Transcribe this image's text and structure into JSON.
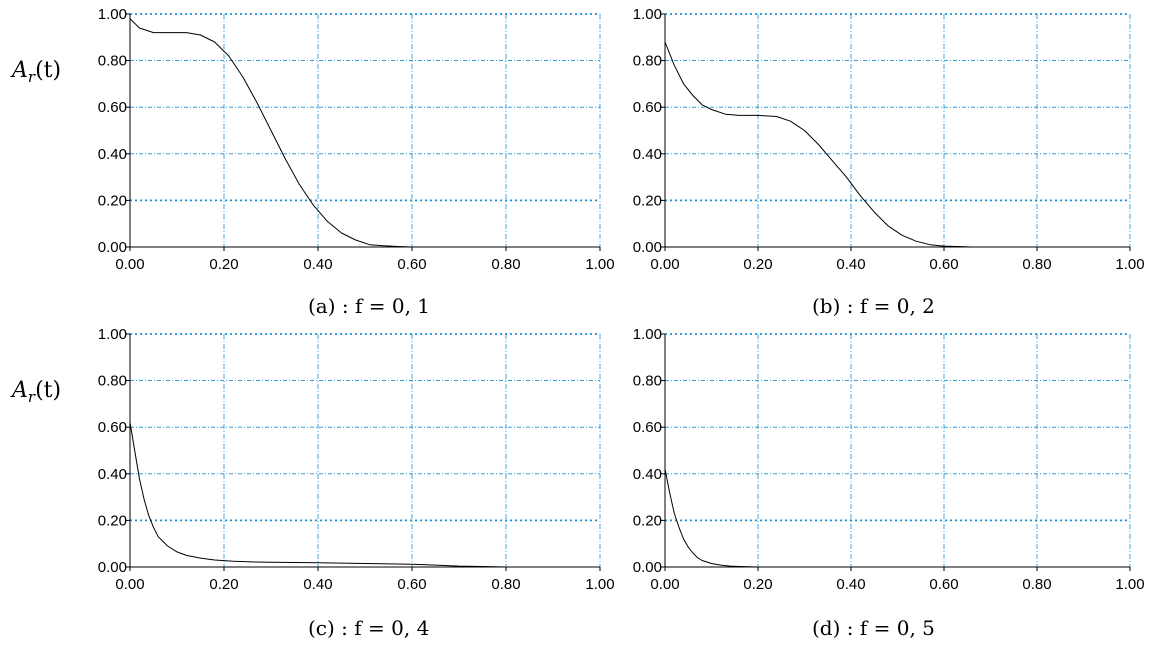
{
  "ylabel_text": {
    "main": "A",
    "sub": "r",
    "rest": "(t)"
  },
  "chart_data": [
    {
      "type": "line",
      "caption": "(a) : f = 0, 1",
      "x_ticks": [
        "0.00",
        "0.20",
        "0.40",
        "0.60",
        "0.80",
        "1.00"
      ],
      "y_ticks": [
        "0.00",
        "0.20",
        "0.40",
        "0.60",
        "0.80",
        "1.00"
      ],
      "xlim": [
        0,
        1
      ],
      "ylim": [
        0,
        1
      ],
      "grid": true,
      "x": [
        0.0,
        0.02,
        0.05,
        0.08,
        0.12,
        0.15,
        0.18,
        0.21,
        0.24,
        0.27,
        0.3,
        0.33,
        0.36,
        0.39,
        0.42,
        0.45,
        0.48,
        0.51,
        0.54,
        0.57,
        0.6,
        0.7,
        0.8,
        0.9,
        1.0
      ],
      "y": [
        0.98,
        0.94,
        0.92,
        0.92,
        0.92,
        0.91,
        0.88,
        0.82,
        0.73,
        0.62,
        0.5,
        0.38,
        0.27,
        0.18,
        0.11,
        0.06,
        0.03,
        0.01,
        0.005,
        0.002,
        0.0,
        0.0,
        0.0,
        0.0,
        0.0
      ]
    },
    {
      "type": "line",
      "caption": "(b) : f = 0, 2",
      "x_ticks": [
        "0.00",
        "0.20",
        "0.40",
        "0.60",
        "0.80",
        "1.00"
      ],
      "y_ticks": [
        "0.00",
        "0.20",
        "0.40",
        "0.60",
        "0.80",
        "1.00"
      ],
      "xlim": [
        0,
        1
      ],
      "ylim": [
        0,
        1
      ],
      "grid": true,
      "x": [
        0.0,
        0.02,
        0.04,
        0.06,
        0.08,
        0.1,
        0.13,
        0.16,
        0.2,
        0.24,
        0.27,
        0.3,
        0.33,
        0.36,
        0.39,
        0.42,
        0.45,
        0.48,
        0.51,
        0.54,
        0.57,
        0.6,
        0.63,
        0.66,
        0.7,
        0.8,
        0.9,
        1.0
      ],
      "y": [
        0.88,
        0.78,
        0.7,
        0.65,
        0.61,
        0.59,
        0.57,
        0.565,
        0.565,
        0.56,
        0.54,
        0.5,
        0.44,
        0.37,
        0.3,
        0.22,
        0.15,
        0.09,
        0.05,
        0.025,
        0.01,
        0.004,
        0.002,
        0.0,
        0.0,
        0.0,
        0.0,
        0.0
      ]
    },
    {
      "type": "line",
      "caption": "(c) : f = 0, 4",
      "x_ticks": [
        "0.00",
        "0.20",
        "0.40",
        "0.60",
        "0.80",
        "1.00"
      ],
      "y_ticks": [
        "0.00",
        "0.20",
        "0.40",
        "0.60",
        "0.80",
        "1.00"
      ],
      "xlim": [
        0,
        1
      ],
      "ylim": [
        0,
        1
      ],
      "grid": true,
      "x": [
        0.0,
        0.01,
        0.02,
        0.03,
        0.04,
        0.05,
        0.06,
        0.08,
        0.1,
        0.12,
        0.15,
        0.18,
        0.22,
        0.26,
        0.3,
        0.4,
        0.5,
        0.6,
        0.65,
        0.7,
        0.75,
        0.8,
        0.9,
        1.0
      ],
      "y": [
        0.62,
        0.5,
        0.38,
        0.29,
        0.22,
        0.17,
        0.13,
        0.09,
        0.065,
        0.05,
        0.038,
        0.03,
        0.025,
        0.022,
        0.02,
        0.018,
        0.015,
        0.012,
        0.008,
        0.004,
        0.002,
        0.0,
        0.0,
        0.0
      ]
    },
    {
      "type": "line",
      "caption": "(d) : f = 0, 5",
      "x_ticks": [
        "0.00",
        "0.20",
        "0.40",
        "0.60",
        "0.80",
        "1.00"
      ],
      "y_ticks": [
        "0.00",
        "0.20",
        "0.40",
        "0.60",
        "0.80",
        "1.00"
      ],
      "xlim": [
        0,
        1
      ],
      "ylim": [
        0,
        1
      ],
      "grid": true,
      "x": [
        0.0,
        0.01,
        0.02,
        0.03,
        0.04,
        0.05,
        0.06,
        0.07,
        0.08,
        0.1,
        0.12,
        0.14,
        0.16,
        0.2,
        0.3,
        0.5,
        0.7,
        1.0
      ],
      "y": [
        0.42,
        0.32,
        0.23,
        0.17,
        0.12,
        0.085,
        0.06,
        0.04,
        0.028,
        0.015,
        0.008,
        0.004,
        0.002,
        0.0,
        0.0,
        0.0,
        0.0,
        0.0
      ]
    }
  ],
  "colors": {
    "grid": "#1a8fd6",
    "axis": "#000000",
    "line": "#000000"
  }
}
